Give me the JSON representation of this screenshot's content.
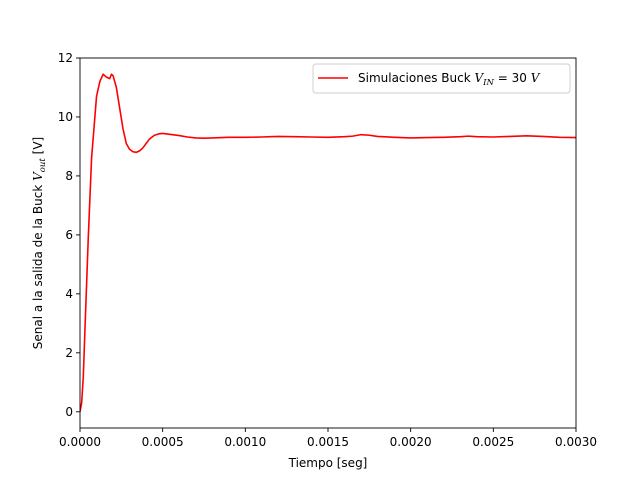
{
  "chart_data": {
    "type": "line",
    "title": "",
    "xlabel": "Tiempo [seg]",
    "ylabel": {
      "prefix": "Senal a la salida de la Buck ",
      "var": "V",
      "sub": "out",
      "suffix": " [V]"
    },
    "xlim": [
      0.0,
      0.003
    ],
    "ylim": [
      -0.55,
      12.0
    ],
    "xticks": [
      "0.0000",
      "0.0005",
      "0.0010",
      "0.0015",
      "0.0020",
      "0.0025",
      "0.0030"
    ],
    "yticks": [
      "0",
      "2",
      "4",
      "6",
      "8",
      "10",
      "12"
    ],
    "grid": false,
    "legend_position": "top-right",
    "series": [
      {
        "name": {
          "prefix": "Simulaciones Buck ",
          "var": "V",
          "sub": "IN",
          "suffix": " = 30 ",
          "unit": "V"
        },
        "color": "#ff0000",
        "x": [
          0.0,
          1e-05,
          2e-05,
          3e-05,
          5e-05,
          7e-05,
          0.0001,
          0.00012,
          0.00014,
          0.00016,
          0.00018,
          0.00019,
          0.0002,
          0.00022,
          0.00024,
          0.00026,
          0.00028,
          0.0003,
          0.00032,
          0.00034,
          0.00036,
          0.00038,
          0.0004,
          0.00042,
          0.00045,
          0.00048,
          0.0005,
          0.00053,
          0.00056,
          0.0006,
          0.00065,
          0.0007,
          0.00075,
          0.0008,
          0.0009,
          0.001,
          0.0011,
          0.00115,
          0.0012,
          0.0013,
          0.0014,
          0.0015,
          0.0016,
          0.00165,
          0.0017,
          0.00175,
          0.0018,
          0.0019,
          0.002,
          0.0021,
          0.0022,
          0.0023,
          0.00235,
          0.0024,
          0.0025,
          0.0026,
          0.0027,
          0.0028,
          0.0029,
          0.003
        ],
        "y": [
          0.0,
          0.3,
          1.2,
          2.8,
          5.9,
          8.6,
          10.7,
          11.2,
          11.45,
          11.35,
          11.3,
          11.45,
          11.4,
          11.0,
          10.3,
          9.6,
          9.1,
          8.9,
          8.82,
          8.8,
          8.85,
          8.95,
          9.1,
          9.25,
          9.38,
          9.43,
          9.44,
          9.42,
          9.4,
          9.37,
          9.32,
          9.29,
          9.28,
          9.29,
          9.31,
          9.31,
          9.32,
          9.33,
          9.34,
          9.33,
          9.32,
          9.31,
          9.33,
          9.35,
          9.4,
          9.38,
          9.34,
          9.31,
          9.29,
          9.3,
          9.31,
          9.33,
          9.35,
          9.33,
          9.32,
          9.34,
          9.36,
          9.34,
          9.31,
          9.3
        ]
      }
    ]
  }
}
